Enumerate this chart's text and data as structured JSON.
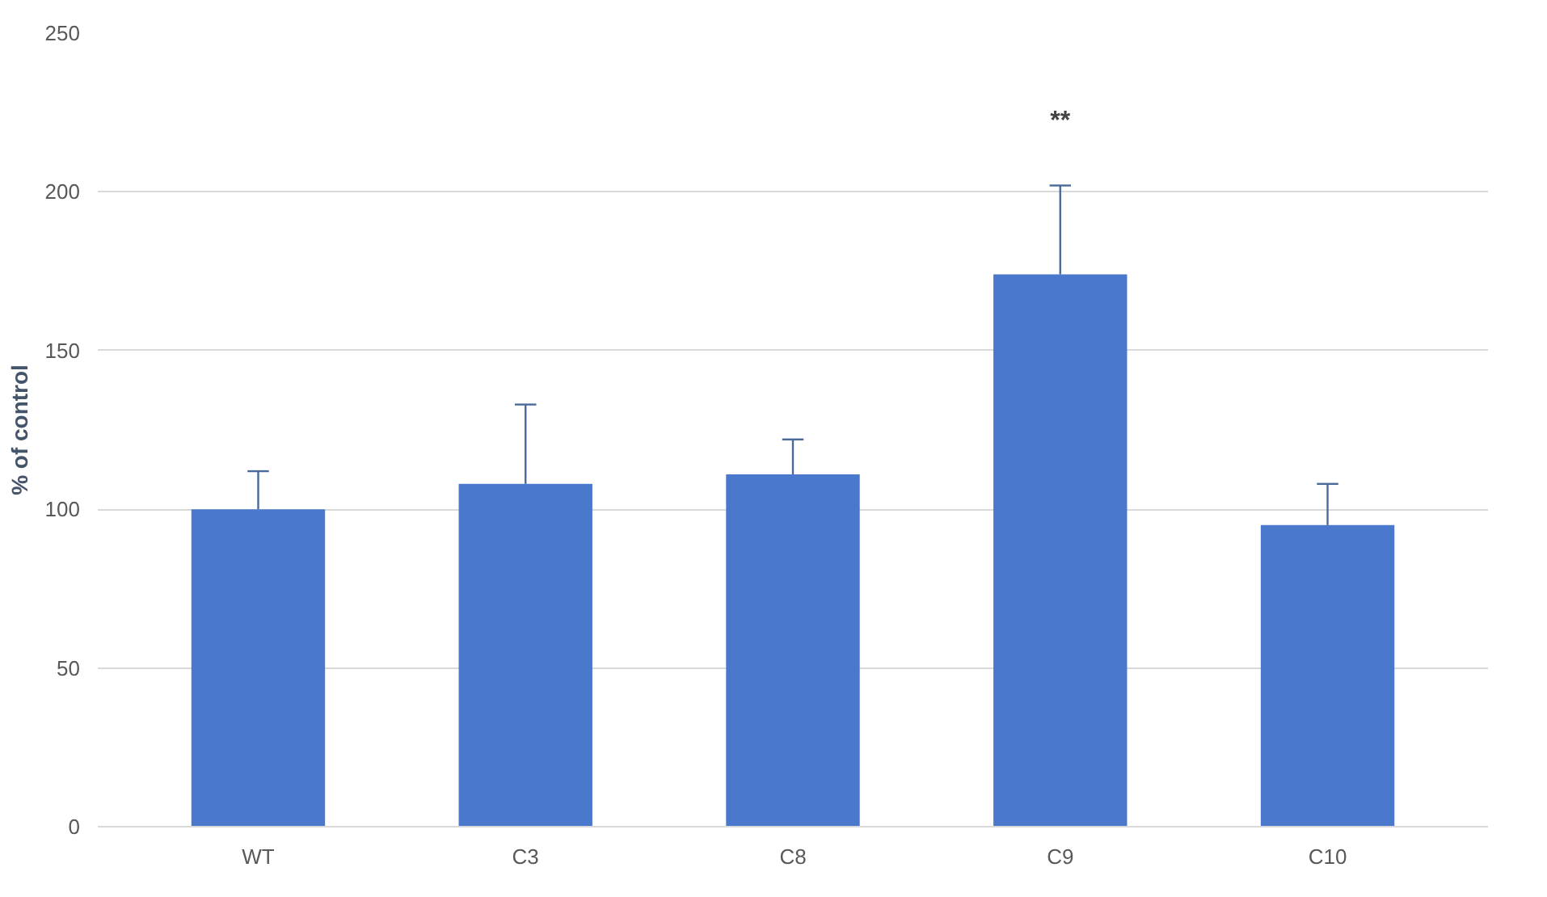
{
  "chart_data": {
    "type": "bar",
    "ylabel": "% of control",
    "categories": [
      "WT",
      "C3",
      "C8",
      "C9",
      "C10"
    ],
    "values": [
      100,
      108,
      111,
      174,
      95
    ],
    "errors": [
      [
        100,
        112
      ],
      [
        108,
        133
      ],
      [
        111,
        122
      ],
      [
        174,
        202
      ],
      [
        95,
        108
      ]
    ],
    "color": "#4a78cc",
    "ylim": [
      0,
      250
    ],
    "yticks": [
      0,
      50,
      100,
      150,
      200,
      250
    ],
    "grid": "y",
    "annotations": [
      "**"
    ]
  }
}
